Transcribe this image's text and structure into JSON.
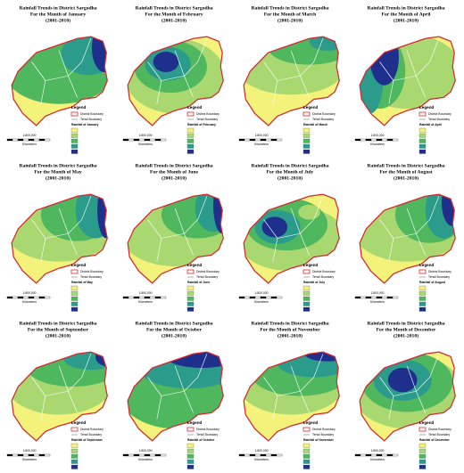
{
  "panels": [
    {
      "title": "Rainfall Trends in District Sargodha",
      "month": "For the Month of January",
      "period": "(2001-2010)",
      "legend": "Legend",
      "district": "District Boundary",
      "tehsil": "Tehsil Boundary",
      "rainfall": "Rainfall of January",
      "scale": "1:800,000",
      "units": "Kilometers"
    },
    {
      "title": "Rainfall Trends in District Sargodha",
      "month": "For the Month of February",
      "period": "(2001-2010)",
      "legend": "Legend",
      "district": "District Boundary",
      "tehsil": "Tehsil Boundary",
      "rainfall": "Rainfall of February",
      "scale": "1:800,000",
      "units": "Kilometers"
    },
    {
      "title": "Rainfall Trends in District Sargodha",
      "month": "For the Month of March",
      "period": "(2001-2010)",
      "legend": "Legend",
      "district": "District Boundary",
      "tehsil": "Tehsil Boundary",
      "rainfall": "Rainfall of March",
      "scale": "1:800,000",
      "units": "Kilometers"
    },
    {
      "title": "Rainfall Trends in District Sargodha",
      "month": "For the Month of April",
      "period": "(2001-2010)",
      "legend": "Legend",
      "district": "District Boundary",
      "tehsil": "Tehsil Boundary",
      "rainfall": "Rainfall of April",
      "scale": "1:800,000",
      "units": "Kilometers"
    },
    {
      "title": "Rainfall Trends in District Sargodha",
      "month": "For the Month of May",
      "period": "(2001-2010)",
      "legend": "Legend",
      "district": "District Boundary",
      "tehsil": "Tehsil Boundary",
      "rainfall": "Rainfall of May",
      "scale": "1:800,000",
      "units": "Kilometers"
    },
    {
      "title": "Rainfall Trends in District Sargodha",
      "month": "For the Month of June",
      "period": "(2001-2010)",
      "legend": "Legend",
      "district": "District Boundary",
      "tehsil": "Tehsil Boundary",
      "rainfall": "Rainfall of June",
      "scale": "1:800,000",
      "units": "Kilometers"
    },
    {
      "title": "Rainfall Trends in District Sargodha",
      "month": "For the Month of July",
      "period": "(2001-2010)",
      "legend": "Legend",
      "district": "District Boundary",
      "tehsil": "Tehsil Boundary",
      "rainfall": "Rainfall of July",
      "scale": "1:800,000",
      "units": "Kilometers"
    },
    {
      "title": "Rainfall Trends in District Sargodha",
      "month": "For the Month of August",
      "period": "(2001-2010)",
      "legend": "Legend",
      "district": "District Boundary",
      "tehsil": "Tehsil Boundary",
      "rainfall": "Rainfall of August",
      "scale": "1:800,000",
      "units": "Kilometers"
    },
    {
      "title": "Rainfall Trends in District Sargodha",
      "month": "For the Month of September",
      "period": "(2001-2010)",
      "legend": "Legend",
      "district": "District Boundary",
      "tehsil": "Tehsil Boundary",
      "rainfall": "Rainfall of September",
      "scale": "1:800,000",
      "units": "Kilometers"
    },
    {
      "title": "Rainfall Trends in District Sargodha",
      "month": "For the Month of October",
      "period": "(2001-2010)",
      "legend": "Legend",
      "district": "District Boundary",
      "tehsil": "Tehsil Boundary",
      "rainfall": "Rainfall of October",
      "scale": "1:800,000",
      "units": "Kilometers"
    },
    {
      "title": "Rainfall Trends in District Sargodha",
      "month": "For the Month of November",
      "period": "(2001-2010)",
      "legend": "Legend",
      "district": "District Boundary",
      "tehsil": "Tehsil Boundary",
      "rainfall": "Rainfall of November",
      "scale": "1:800,000",
      "units": "Kilometers"
    },
    {
      "title": "Rainfall Trends in District Sargodha",
      "month": "For the Month of December",
      "period": "(2001-2010)",
      "legend": "Legend",
      "district": "District Boundary",
      "tehsil": "Tehsil Boundary",
      "rainfall": "Rainfall of December",
      "scale": "1:800,000",
      "units": "Kilometers"
    }
  ]
}
